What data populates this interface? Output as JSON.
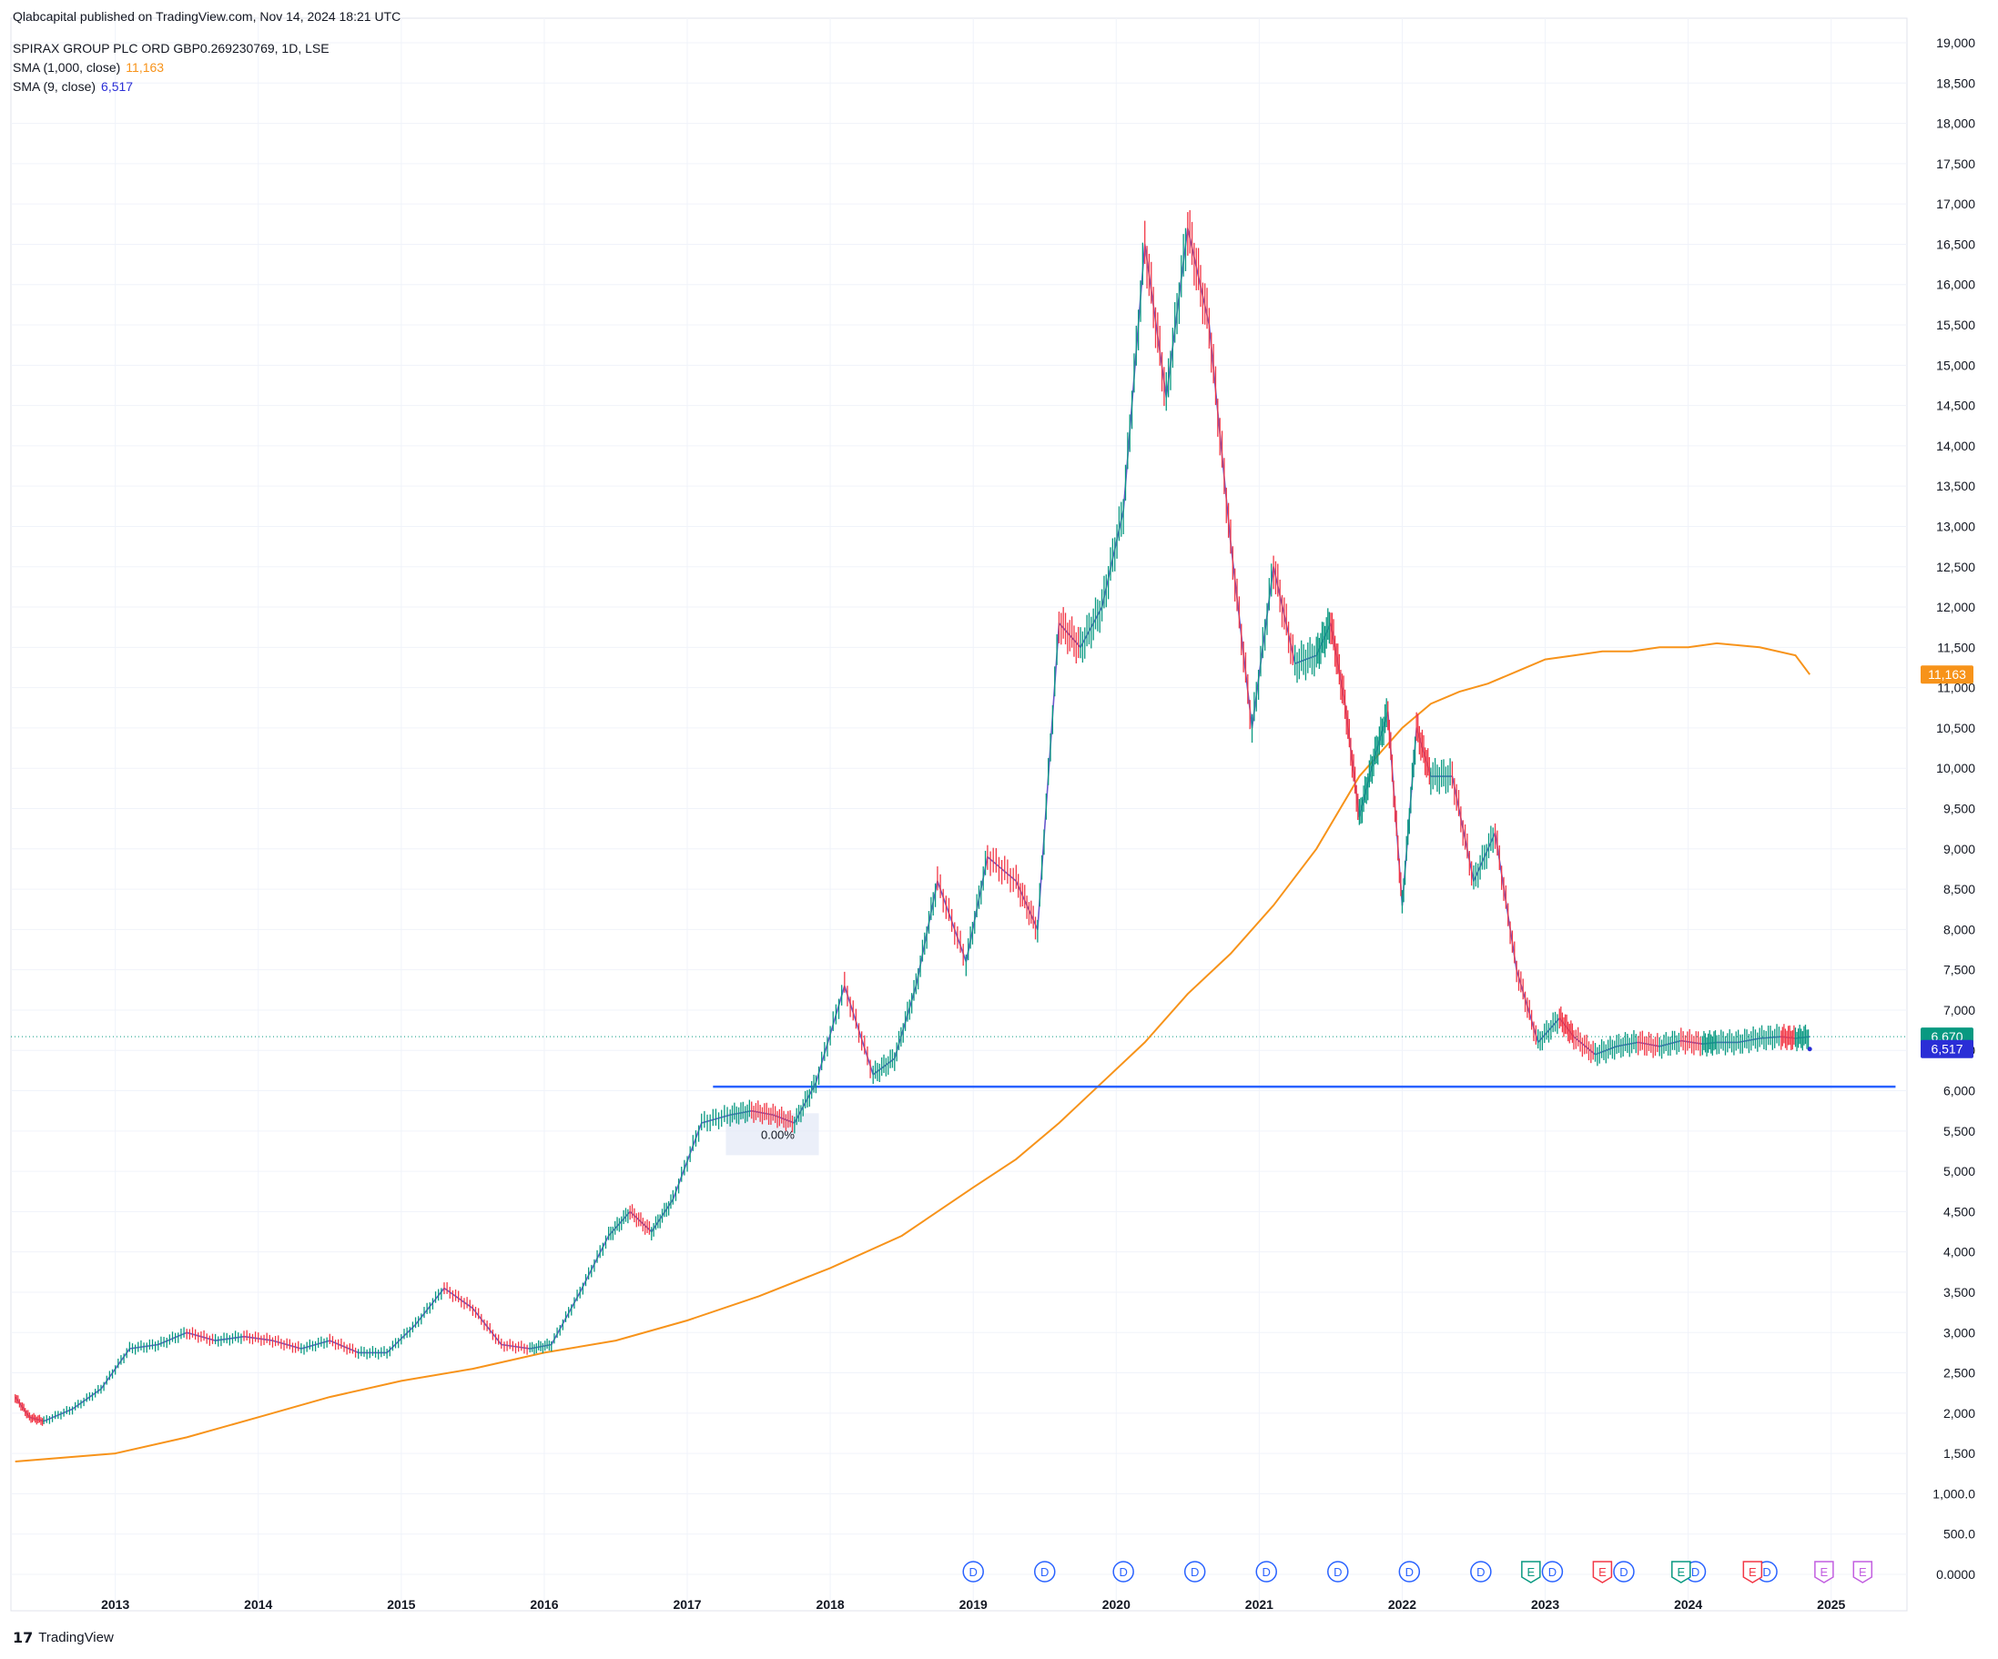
{
  "publisher_line": "Qlabcapital published on TradingView.com, Nov 14, 2024 18:21 UTC",
  "symbol_line": "SPIRAX GROUP PLC ORD GBP0.269230769, 1D, LSE",
  "indicators": [
    {
      "label": "SMA (1,000, close)",
      "value": "11,163",
      "color": "#f7931a"
    },
    {
      "label": "SMA (9, close)",
      "value": "6,517",
      "color": "#2a2ed6"
    }
  ],
  "brand": "TradingView",
  "colors": {
    "up": "#089981",
    "down": "#f23645",
    "sma1000": "#f7931a",
    "sma9": "#2a2ed6",
    "support": "#2962ff",
    "last_price": "#089981",
    "grid": "#f0f3fa",
    "dividend": "#2962ff",
    "earnings_past_up": "#089981",
    "earnings_past_down": "#f23645",
    "earnings_future": "#c25ee0"
  },
  "chart_data": {
    "type": "line",
    "title": "SPIRAX GROUP PLC ORD GBP0.269230769, 1D, LSE",
    "xlabel": "",
    "ylabel": "",
    "x_tick_labels": [
      "2013",
      "2014",
      "2015",
      "2016",
      "2017",
      "2018",
      "2019",
      "2020",
      "2021",
      "2022",
      "2023",
      "2024",
      "2025"
    ],
    "y_tick_labels": [
      "0.0000",
      "500.0",
      "1,000.0",
      "1,500",
      "2,000",
      "2,500",
      "3,000",
      "3,500",
      "4,000",
      "4,500",
      "5,000",
      "5,500",
      "6,000",
      "6,500",
      "7,000",
      "7,500",
      "8,000",
      "8,500",
      "9,000",
      "9,500",
      "10,000",
      "10,500",
      "11,000",
      "11,500",
      "12,000",
      "12,500",
      "13,000",
      "13,500",
      "14,000",
      "14,500",
      "15,000",
      "15,500",
      "16,000",
      "16,500",
      "17,000",
      "17,500",
      "18,000",
      "18,500",
      "19,000"
    ],
    "xlim": [
      2012.27,
      2025.53
    ],
    "ylim": [
      0,
      19000
    ],
    "grid": true,
    "series": [
      {
        "name": "SPIRAX GROUP PLC ORD GBP0.269230769",
        "x": [
          2012.3,
          2012.4,
          2012.5,
          2012.7,
          2012.9,
          2013.1,
          2013.3,
          2013.5,
          2013.7,
          2013.9,
          2014.1,
          2014.3,
          2014.5,
          2014.7,
          2014.9,
          2015.1,
          2015.3,
          2015.5,
          2015.7,
          2015.9,
          2016.05,
          2016.25,
          2016.45,
          2016.6,
          2016.75,
          2016.9,
          2017.1,
          2017.3,
          2017.45,
          2017.6,
          2017.75,
          2017.9,
          2018.1,
          2018.3,
          2018.45,
          2018.6,
          2018.75,
          2018.95,
          2019.1,
          2019.3,
          2019.45,
          2019.6,
          2019.75,
          2019.9,
          2020.05,
          2020.2,
          2020.35,
          2020.5,
          2020.65,
          2020.8,
          2020.95,
          2021.1,
          2021.25,
          2021.4,
          2021.5,
          2021.6,
          2021.7,
          2021.8,
          2021.9,
          2022.0,
          2022.1,
          2022.2,
          2022.35,
          2022.5,
          2022.65,
          2022.8,
          2022.95,
          2023.1,
          2023.2,
          2023.35,
          2023.5,
          2023.65,
          2023.8,
          2023.95,
          2024.1,
          2024.2,
          2024.35,
          2024.5,
          2024.65,
          2024.75,
          2024.85
        ],
        "y": [
          2200,
          1950,
          1900,
          2050,
          2300,
          2800,
          2850,
          3000,
          2900,
          2950,
          2900,
          2800,
          2900,
          2750,
          2750,
          3100,
          3550,
          3300,
          2850,
          2800,
          2850,
          3500,
          4200,
          4500,
          4250,
          4650,
          5600,
          5700,
          5750,
          5700,
          5600,
          6100,
          7300,
          6200,
          6400,
          7300,
          8600,
          7600,
          8900,
          8600,
          8000,
          11800,
          11500,
          12000,
          13200,
          16500,
          14600,
          16700,
          15500,
          12800,
          10500,
          12500,
          11300,
          11400,
          11800,
          10800,
          9400,
          10100,
          10700,
          8300,
          10500,
          9900,
          9900,
          8600,
          9200,
          7500,
          6600,
          6900,
          6670,
          6450,
          6550,
          6600,
          6550,
          6620,
          6580,
          6600,
          6600,
          6650,
          6670,
          6650,
          6670
        ]
      },
      {
        "name": "SMA (1,000, close)",
        "x": [
          2012.3,
          2013.0,
          2013.5,
          2014.0,
          2014.5,
          2015.0,
          2015.5,
          2016.0,
          2016.5,
          2017.0,
          2017.5,
          2018.0,
          2018.5,
          2019.0,
          2019.3,
          2019.6,
          2019.9,
          2020.2,
          2020.5,
          2020.8,
          2021.1,
          2021.4,
          2021.7,
          2022.0,
          2022.2,
          2022.4,
          2022.6,
          2022.8,
          2023.0,
          2023.2,
          2023.4,
          2023.6,
          2023.8,
          2024.0,
          2024.2,
          2024.5,
          2024.75,
          2024.85
        ],
        "y": [
          1400,
          1500,
          1700,
          1950,
          2200,
          2400,
          2550,
          2750,
          2900,
          3150,
          3450,
          3800,
          4200,
          4800,
          5150,
          5600,
          6100,
          6600,
          7200,
          7700,
          8300,
          9000,
          9900,
          10500,
          10800,
          10950,
          11050,
          11200,
          11350,
          11400,
          11450,
          11450,
          11500,
          11500,
          11550,
          11500,
          11400,
          11163
        ]
      },
      {
        "name": "SMA (9, close)",
        "x": [
          2024.85
        ],
        "y": [
          6517
        ]
      }
    ],
    "horizontal_lines": [
      {
        "label": "support",
        "value": 6050,
        "x_from": 2017.18,
        "x_to": 2025.45
      }
    ],
    "price_labels": [
      {
        "value": 11163,
        "text": "11,163",
        "color": "#f7931a"
      },
      {
        "value": 6670,
        "text": "6,670",
        "color": "#089981"
      },
      {
        "value": 6517,
        "text": "6,517",
        "color": "#2a2ed6"
      }
    ],
    "range_box": {
      "x_from": 2017.27,
      "x_to": 2017.92,
      "y_from": 5200,
      "y_to": 5720,
      "text": "0.00%"
    },
    "dividend_markers": {
      "label": "D",
      "x": [
        2019.0,
        2019.5,
        2020.05,
        2020.55,
        2021.05,
        2021.55,
        2022.05,
        2022.55,
        2023.05,
        2023.55,
        2024.05,
        2024.55
      ]
    },
    "earnings_markers": [
      {
        "label": "E",
        "x": 2022.9,
        "color": "#089981"
      },
      {
        "label": "E",
        "x": 2023.4,
        "color": "#f23645"
      },
      {
        "label": "E",
        "x": 2023.95,
        "color": "#089981"
      },
      {
        "label": "E",
        "x": 2024.45,
        "color": "#f23645"
      },
      {
        "label": "E",
        "x": 2024.95,
        "color": "#c25ee0"
      },
      {
        "label": "E",
        "x": 2025.22,
        "color": "#c25ee0"
      }
    ]
  }
}
